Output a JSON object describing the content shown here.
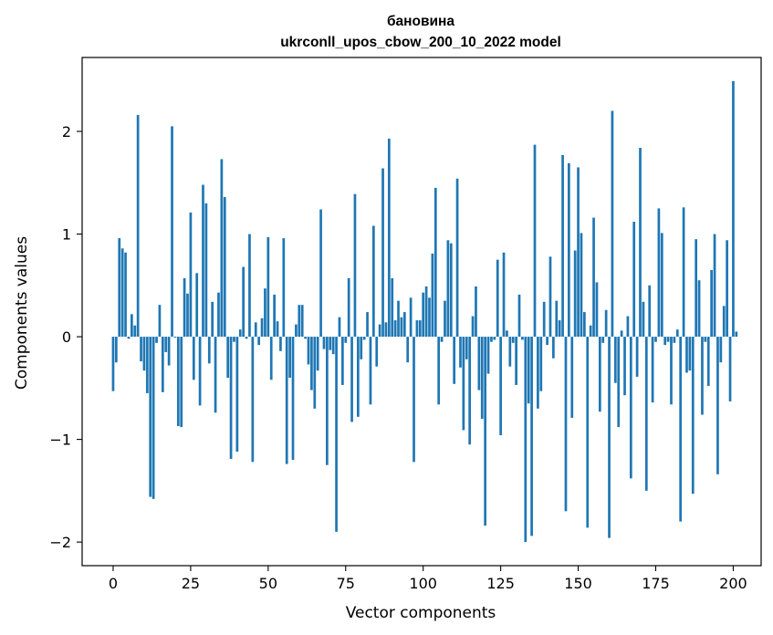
{
  "chart_data": {
    "type": "bar",
    "title": "бановина",
    "subtitle": "ukrconll_upos_cbow_200_10_2022 model",
    "xlabel": "Vector components",
    "ylabel": "Components values",
    "xlim": [
      -10,
      209
    ],
    "ylim": [
      -2.23,
      2.72
    ],
    "xticks": [
      0,
      25,
      50,
      75,
      100,
      125,
      150,
      175,
      200
    ],
    "yticks": [
      -2,
      -1,
      0,
      1,
      2
    ],
    "ytick_labels": [
      "−2",
      "−1",
      "0",
      "1",
      "2"
    ],
    "bar_color": "#1f77b4",
    "grid": false,
    "values": [
      -0.53,
      -0.25,
      0.96,
      0.86,
      0.82,
      -0.02,
      0.22,
      0.11,
      2.16,
      -0.24,
      -0.33,
      -0.55,
      -1.56,
      -1.58,
      -0.06,
      0.31,
      -0.54,
      -0.15,
      -0.28,
      2.05,
      -0.01,
      -0.87,
      -0.88,
      0.57,
      0.42,
      1.21,
      -0.42,
      0.62,
      -0.67,
      1.48,
      1.3,
      -0.26,
      0.34,
      -0.74,
      0.43,
      1.73,
      1.36,
      -0.4,
      -1.19,
      -0.05,
      -1.12,
      0.07,
      0.68,
      -0.02,
      1.0,
      -1.22,
      0.14,
      -0.08,
      0.18,
      0.47,
      0.97,
      -0.42,
      0.41,
      0.15,
      -0.14,
      0.96,
      -1.24,
      -0.4,
      -1.2,
      0.12,
      0.31,
      0.31,
      -0.02,
      -0.27,
      -0.52,
      -0.7,
      -0.33,
      1.24,
      -0.12,
      -1.25,
      -0.13,
      -0.17,
      -1.9,
      0.19,
      -0.47,
      -0.06,
      0.57,
      -0.83,
      1.39,
      -0.78,
      -0.22,
      -0.03,
      0.24,
      -0.66,
      1.08,
      -0.29,
      0.12,
      1.64,
      0.14,
      1.93,
      0.57,
      0.16,
      0.35,
      0.19,
      0.24,
      -0.25,
      0.38,
      -1.22,
      0.16,
      0.16,
      0.43,
      0.49,
      0.38,
      0.81,
      1.45,
      -0.66,
      -0.05,
      0.35,
      0.94,
      0.91,
      -0.46,
      1.54,
      -0.3,
      -0.91,
      -0.22,
      -1.05,
      0.2,
      0.49,
      -0.52,
      -0.8,
      -1.84,
      -0.36,
      -0.05,
      -0.03,
      0.75,
      -0.96,
      0.82,
      0.06,
      -0.29,
      -0.06,
      -0.47,
      0.41,
      -0.03,
      -2.0,
      -0.65,
      -1.94,
      1.87,
      -0.7,
      -0.53,
      0.34,
      -0.08,
      0.78,
      -0.21,
      0.35,
      0.16,
      1.77,
      -1.7,
      1.69,
      -0.79,
      0.84,
      1.65,
      1.01,
      0.24,
      -1.86,
      0.11,
      1.16,
      0.53,
      -0.73,
      -0.06,
      0.26,
      -1.96,
      2.2,
      -0.45,
      -0.88,
      0.06,
      -0.57,
      0.2,
      -1.38,
      1.12,
      -0.39,
      1.84,
      0.34,
      -1.5,
      0.5,
      -0.64,
      -0.05,
      1.25,
      1.01,
      -0.08,
      -0.05,
      -0.66,
      -0.06,
      0.07,
      -1.8,
      1.26,
      -0.35,
      -0.33,
      -1.53,
      0.95,
      0.55,
      -0.76,
      -0.05,
      -0.48,
      0.65,
      1.0,
      -1.34,
      -0.25,
      0.3,
      0.94,
      -0.63,
      2.49,
      0.05
    ]
  }
}
